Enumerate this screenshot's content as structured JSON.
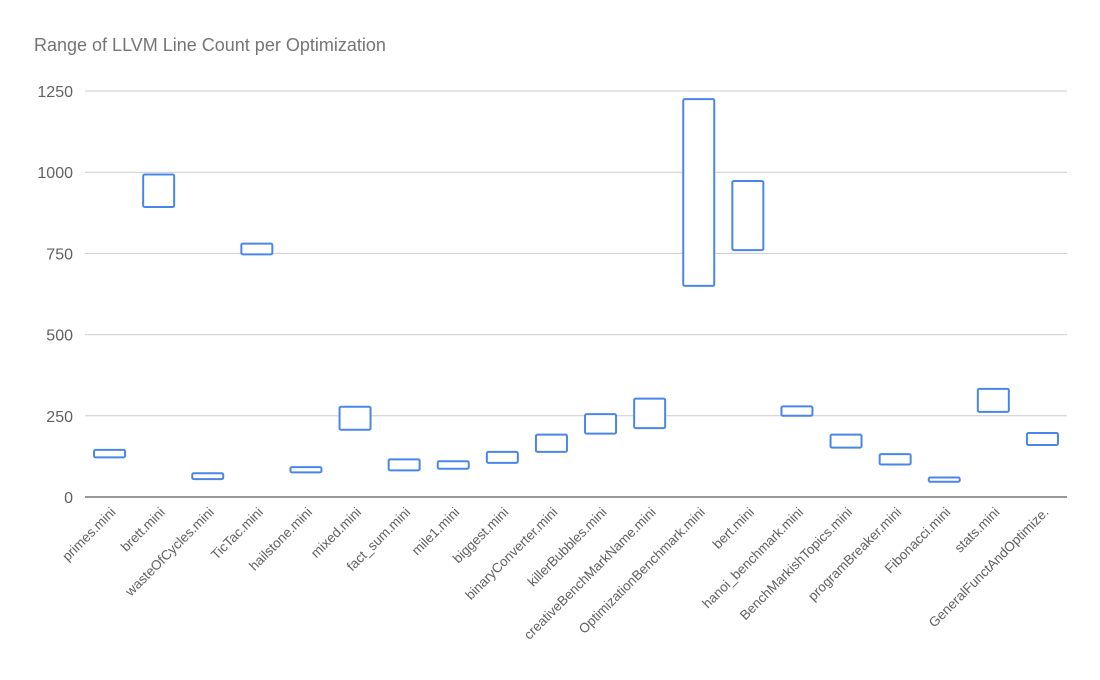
{
  "chart_data": {
    "type": "candlestick",
    "title": "Range of LLVM Line Count per Optimization",
    "xlabel": "",
    "ylabel": "",
    "ylim": [
      0,
      1250
    ],
    "yticks": [
      0,
      250,
      500,
      750,
      1000,
      1250
    ],
    "grid": true,
    "legend": "none",
    "color": "#4a86e8",
    "categories": [
      "primes.mini",
      "brett.mini",
      "wasteOfCycles.mini",
      "TicTac.mini",
      "hailstone.mini",
      "mixed.mini",
      "fact_sum.mini",
      "mile1.mini",
      "biggest.mini",
      "binaryConverter.mini",
      "killerBubbles.mini",
      "creativeBenchMarkName.mini",
      "OptimizationBenchmark.mini",
      "bert.mini",
      "hanoi_benchmark.mini",
      "BenchMarkishTopics.mini",
      "programBreaker.mini",
      "Fibonacci.mini",
      "stats.mini",
      "GeneralFunctAndOptimize."
    ],
    "ranges": [
      [
        122,
        145
      ],
      [
        893,
        993
      ],
      [
        55,
        73
      ],
      [
        747,
        780
      ],
      [
        76,
        92
      ],
      [
        207,
        278
      ],
      [
        82,
        116
      ],
      [
        87,
        110
      ],
      [
        105,
        139
      ],
      [
        139,
        192
      ],
      [
        195,
        255
      ],
      [
        212,
        303
      ],
      [
        650,
        1225
      ],
      [
        760,
        973
      ],
      [
        250,
        279
      ],
      [
        152,
        192
      ],
      [
        100,
        132
      ],
      [
        47,
        60
      ],
      [
        262,
        333
      ],
      [
        160,
        197
      ]
    ]
  }
}
